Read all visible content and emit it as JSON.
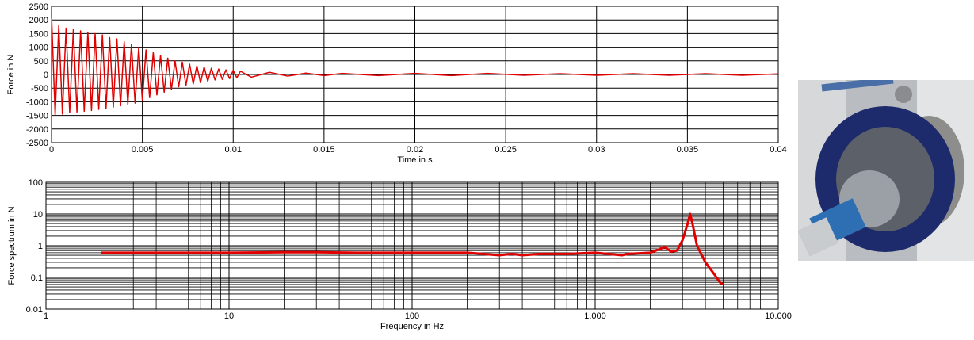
{
  "chart_data": [
    {
      "type": "line",
      "y_label": "Force in N",
      "x_label": "Time in s",
      "xlim": [
        0,
        0.04
      ],
      "xticks": [
        0,
        0.005,
        0.01,
        0.015,
        0.02,
        0.025,
        0.03,
        0.035,
        0.04
      ],
      "ylim": [
        -2500,
        2500
      ],
      "yticks": [
        -2500,
        -2000,
        -1500,
        -1000,
        -500,
        0,
        500,
        1000,
        1500,
        2000,
        2500
      ],
      "grid": true,
      "series": [
        {
          "color": "#e00000",
          "x": [
            0,
            0.0002,
            0.0004,
            0.0006,
            0.0008,
            0.001,
            0.0012,
            0.0014,
            0.0016,
            0.0018,
            0.002,
            0.0022,
            0.0024,
            0.0026,
            0.0028,
            0.003,
            0.0032,
            0.0034,
            0.0036,
            0.0038,
            0.004,
            0.0042,
            0.0044,
            0.0046,
            0.0048,
            0.005,
            0.0052,
            0.0054,
            0.0056,
            0.0058,
            0.006,
            0.0062,
            0.0064,
            0.0066,
            0.0068,
            0.007,
            0.0072,
            0.0074,
            0.0076,
            0.0078,
            0.008,
            0.0082,
            0.0084,
            0.0086,
            0.0088,
            0.009,
            0.0092,
            0.0094,
            0.0096,
            0.0098,
            0.01,
            0.0102,
            0.0104,
            0.011,
            0.012,
            0.013,
            0.014,
            0.015,
            0.016,
            0.018,
            0.02,
            0.022,
            0.024,
            0.026,
            0.028,
            0.03,
            0.032,
            0.034,
            0.036,
            0.038,
            0.04
          ],
          "values": [
            2200,
            -1500,
            1800,
            -1450,
            1700,
            -1400,
            1650,
            -1380,
            1600,
            -1350,
            1550,
            -1320,
            1500,
            -1280,
            1450,
            -1250,
            1350,
            -1200,
            1300,
            -1150,
            1200,
            -1100,
            1100,
            -1050,
            1000,
            -950,
            900,
            -850,
            800,
            -750,
            700,
            -650,
            600,
            -550,
            500,
            -450,
            450,
            -400,
            380,
            -350,
            320,
            -300,
            280,
            -250,
            230,
            -200,
            200,
            -180,
            170,
            -150,
            150,
            -120,
            120,
            -100,
            80,
            -60,
            50,
            -40,
            40,
            -40,
            40,
            -40,
            40,
            -30,
            30,
            -30,
            30,
            -30,
            30,
            -30,
            20
          ]
        }
      ]
    },
    {
      "type": "line",
      "y_label": "Force spectrum in N",
      "x_label": "Frequency in Hz",
      "xlog": true,
      "ylog": true,
      "minor_grid": true,
      "xlim": [
        1,
        10000
      ],
      "xticks": [
        1,
        10,
        100,
        {
          "value": 1000,
          "label": "1.000"
        },
        {
          "value": 10000,
          "label": "10.000"
        }
      ],
      "ylim": [
        0.01,
        100
      ],
      "yticks": [
        {
          "value": 0.01,
          "label": "0,01"
        },
        0.1,
        1,
        10,
        100
      ],
      "grid": true,
      "series": [
        {
          "color": "#e00000",
          "x": [
            2,
            3,
            5,
            10,
            20,
            30,
            50,
            100,
            200,
            300,
            350,
            400,
            500,
            700,
            1000,
            1400,
            1500,
            2000,
            2400,
            2600,
            2800,
            3000,
            3200,
            3300,
            3400,
            3600,
            4000,
            4500,
            4800,
            5000
          ],
          "values": [
            0.6,
            0.6,
            0.6,
            0.6,
            0.62,
            0.62,
            0.6,
            0.6,
            0.6,
            0.5,
            0.55,
            0.5,
            0.55,
            0.55,
            0.6,
            0.5,
            0.55,
            0.6,
            0.9,
            0.65,
            0.7,
            1.5,
            5,
            10,
            5,
            1,
            0.3,
            0.12,
            0.07,
            0.06
          ]
        }
      ]
    }
  ]
}
